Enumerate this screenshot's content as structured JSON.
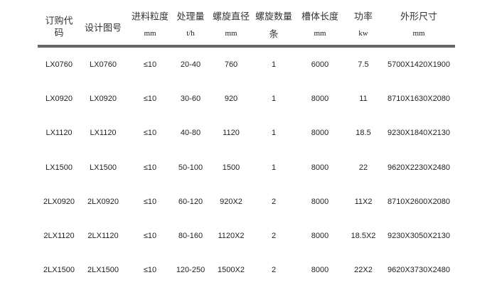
{
  "headers": [
    {
      "label": "订购代码",
      "l1": "订购代",
      "l2": "码",
      "unit": ""
    },
    {
      "label": "设计图号",
      "unit": ""
    },
    {
      "label": "进料粒度",
      "unit": "mm"
    },
    {
      "label": "处理量",
      "unit": "t/h"
    },
    {
      "label": "螺旋直径",
      "unit": "mm"
    },
    {
      "label": "螺旋数量",
      "unit": "条"
    },
    {
      "label": "槽体长度",
      "unit": "mm"
    },
    {
      "label": "功率",
      "unit": "kw"
    },
    {
      "label": "外形尺寸",
      "unit": "mm"
    }
  ],
  "rows": [
    [
      "LX0760",
      "LX0760",
      "≤10",
      "20-40",
      "760",
      "1",
      "6000",
      "7.5",
      "5700X1420X1900"
    ],
    [
      "LX0920",
      "LX0920",
      "≤10",
      "30-60",
      "920",
      "1",
      "8000",
      "11",
      "8710X1630X2080"
    ],
    [
      "LX1120",
      "LX1120",
      "≤10",
      "40-80",
      "1120",
      "1",
      "8000",
      "18.5",
      "9230X1840X2130"
    ],
    [
      "LX1500",
      "LX1500",
      "≤10",
      "50-100",
      "1500",
      "1",
      "8000",
      "22",
      "9620X2230X2480"
    ],
    [
      "2LX0920",
      "2LX0920",
      "≤10",
      "60-120",
      "920X2",
      "2",
      "8000",
      "11X2",
      "8710X2600X2080"
    ],
    [
      "2LX1120",
      "2LX1120",
      "≤10",
      "80-160",
      "1120X2",
      "2",
      "8000",
      "18.5X2",
      "9230X3050X2130"
    ],
    [
      "2LX1500",
      "2LX1500",
      "≤10",
      "120-250",
      "1500X2",
      "2",
      "8000",
      "22X2",
      "9620X3730X2480"
    ]
  ]
}
